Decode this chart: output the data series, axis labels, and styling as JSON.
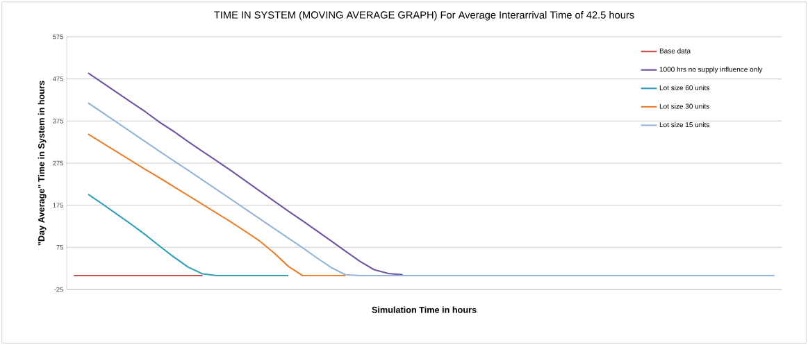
{
  "chart_data": {
    "type": "line",
    "title": "TIME IN SYSTEM (MOVING AVERAGE GRAPH) For Average Interarrival Time of 42.5 hours",
    "xlabel": "Simulation Time in hours",
    "ylabel": "\"Day Average\" Time in System in hours",
    "categories": [
      null,
      null,
      null,
      null,
      null,
      null,
      null,
      null,
      null,
      null,
      null,
      null,
      null,
      null,
      null,
      null,
      null,
      null,
      null,
      null,
      null,
      null,
      null,
      null,
      null,
      null,
      null,
      null,
      null,
      null,
      null,
      null,
      null,
      null,
      null,
      null,
      null,
      null,
      null,
      null,
      null,
      null,
      null,
      null,
      null,
      null,
      null,
      null,
      null,
      null
    ],
    "series": [
      {
        "name": "Base data",
        "color": "#c0504d",
        "values": [
          8,
          8,
          8,
          8,
          8,
          8,
          8,
          8,
          8,
          8,
          null,
          null,
          null,
          null,
          null,
          null,
          null,
          null,
          null,
          null,
          null,
          null,
          null,
          null,
          null,
          null,
          null,
          null,
          null,
          null,
          null,
          null,
          null,
          null,
          null,
          null,
          null,
          null,
          null,
          null,
          null,
          null,
          null,
          null,
          null,
          null,
          null,
          null,
          null,
          null
        ]
      },
      {
        "name": "1000 hrs no supply influence only",
        "color": "#7153a0",
        "values": [
          null,
          489,
          466,
          443,
          420,
          397,
          372,
          350,
          326,
          303,
          280,
          257,
          233,
          209,
          185,
          161,
          138,
          114,
          90,
          66,
          42,
          22,
          13,
          10,
          null,
          null,
          null,
          null,
          null,
          null,
          null,
          null,
          null,
          null,
          null,
          null,
          null,
          null,
          null,
          null,
          null,
          null,
          null,
          null,
          null,
          null,
          null,
          null,
          null,
          null
        ]
      },
      {
        "name": "Lot size 60 units",
        "color": "#31a0b4",
        "values": [
          null,
          201,
          178,
          154,
          130,
          105,
          78,
          52,
          28,
          12,
          8,
          8,
          8,
          8,
          8,
          8,
          null,
          null,
          null,
          null,
          null,
          null,
          null,
          null,
          null,
          null,
          null,
          null,
          null,
          null,
          null,
          null,
          null,
          null,
          null,
          null,
          null,
          null,
          null,
          null,
          null,
          null,
          null,
          null,
          null,
          null,
          null,
          null,
          null,
          null
        ]
      },
      {
        "name": "Lot size 30 units",
        "color": "#e8802f",
        "values": [
          null,
          344,
          323,
          302,
          281,
          260,
          240,
          219,
          198,
          177,
          156,
          135,
          113,
          90,
          62,
          30,
          8,
          8,
          8,
          8,
          null,
          null,
          null,
          null,
          null,
          null,
          null,
          null,
          null,
          null,
          null,
          null,
          null,
          null,
          null,
          null,
          null,
          null,
          null,
          null,
          null,
          null,
          null,
          null,
          null,
          null,
          null,
          null,
          null,
          null
        ]
      },
      {
        "name": "Lot size 15 units",
        "color": "#95b3d7",
        "values": [
          null,
          418,
          395,
          372,
          349,
          326,
          303,
          280,
          258,
          235,
          212,
          189,
          166,
          143,
          120,
          97,
          74,
          50,
          27,
          10,
          8,
          8,
          8,
          8,
          8,
          8,
          8,
          8,
          8,
          8,
          8,
          8,
          8,
          8,
          8,
          8,
          8,
          8,
          8,
          8,
          8,
          8,
          8,
          8,
          8,
          8,
          8,
          8,
          8,
          8
        ]
      }
    ],
    "ylim": [
      -25,
      575
    ],
    "yticks": [
      -25,
      75,
      175,
      275,
      375,
      475,
      575
    ],
    "grid": "y",
    "legend": "top right",
    "marker": "none",
    "line_style": "solid"
  }
}
